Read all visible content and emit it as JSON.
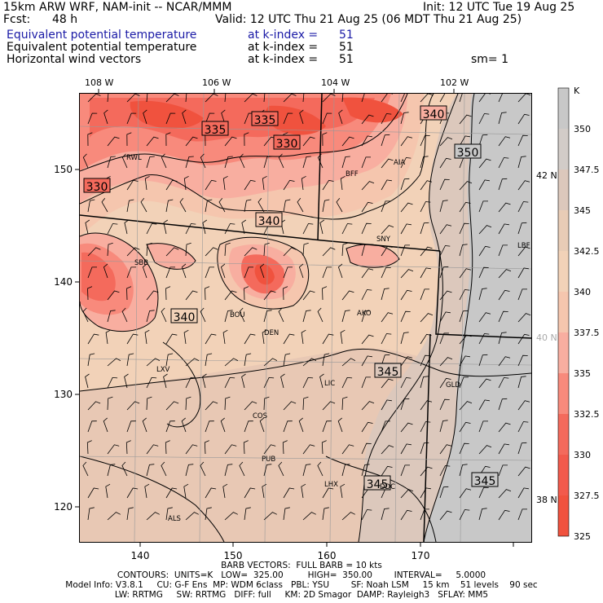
{
  "header": {
    "model": "15km ARW WRF, NAM-init -- NCAR/MMM",
    "init": "Init: 12 UTC Tue 19 Aug 25",
    "fcst_label": "Fcst:",
    "fcst_value": "48 h",
    "valid": "Valid: 12 UTC Thu 21 Aug 25 (06 MDT Thu 21 Aug 25)",
    "fields": [
      {
        "name": "Equivalent potential temperature",
        "level": "at k-index =",
        "k": "51"
      },
      {
        "name": "Equivalent potential temperature",
        "level": "at k-index =",
        "k": "51"
      },
      {
        "name": "Horizontal wind vectors",
        "level": "at k-index =",
        "k": "51"
      }
    ],
    "smoothing": "sm= 1"
  },
  "axes": {
    "top_lon_labels": [
      "108 W",
      "106 W",
      "104 W",
      "102 W"
    ],
    "right_lat_labels": [
      "42 N",
      "40 N",
      "38 N"
    ],
    "bottom_ticks": [
      "140",
      "150",
      "160",
      "170"
    ],
    "left_ticks": [
      "150",
      "140",
      "130",
      "120"
    ]
  },
  "colorbar": {
    "unit": "K",
    "labels": [
      "350",
      "347.5",
      "345",
      "342.5",
      "340",
      "337.5",
      "335",
      "332.5",
      "330",
      "327.5",
      "325"
    ],
    "colors": [
      "#c8c8c8",
      "#d2ccc8",
      "#dcc8bc",
      "#e8ccb6",
      "#f2d2b8",
      "#f5c6ae",
      "#f8aea0",
      "#f88a7c",
      "#f46a5c",
      "#f25a4c",
      "#f0523e"
    ]
  },
  "contour_labels": [
    "335",
    "335",
    "330",
    "340",
    "330",
    "340",
    "340",
    "350",
    "345",
    "345",
    "345"
  ],
  "stations": [
    "RWL",
    "BFF",
    "AIA",
    "SNY",
    "LBF",
    "SBB",
    "BOU",
    "DEN",
    "AKO",
    "LIC",
    "GLD",
    "LXV",
    "COS",
    "PUB",
    "LHX",
    "DDC",
    "ALS"
  ],
  "footer": {
    "barbs": "BARB VECTORS:  FULL BARB = 10 kts",
    "contours": "CONTOURS:  UNITS=K   LOW=  325.00         HIGH=  350.00        INTERVAL=     5.0000",
    "model_info": "Model Info: V3.8.1     CU: G-F Ens  MP: WDM 6class   PBL: YSU        SF: Noah LSM     15 km    51 levels    90 sec",
    "physics": "LW: RRTMG     SW: RRTMG   DIFF: full     KM: 2D Smagor  DAMP: Rayleigh3   SFLAY: MM5"
  }
}
